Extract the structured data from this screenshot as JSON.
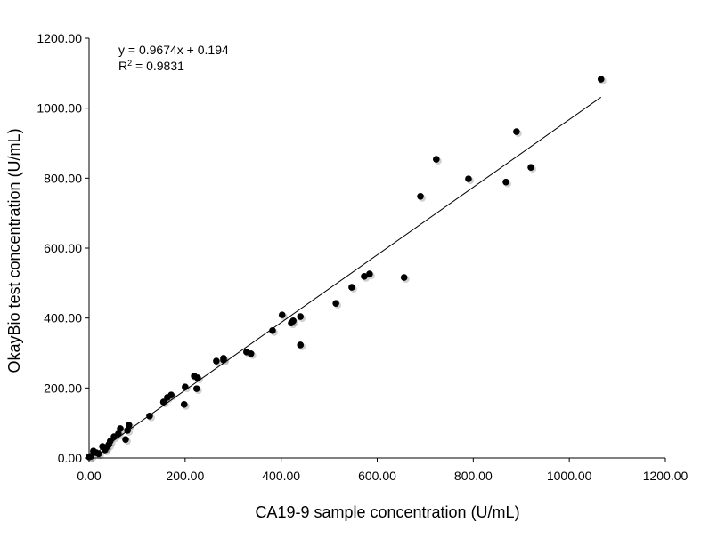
{
  "chart_data": {
    "type": "scatter",
    "xlabel": "CA19-9  sample concentration (U/mL)",
    "ylabel": "OkayBio test concentration (U/mL)",
    "xlim": [
      0,
      1200
    ],
    "ylim": [
      0,
      1200
    ],
    "xticks": [
      "0.00",
      "200.00",
      "400.00",
      "600.00",
      "800.00",
      "1000.00",
      "1200.00"
    ],
    "yticks": [
      "0.00",
      "200.00",
      "400.00",
      "600.00",
      "800.00",
      "1000.00",
      "1200.00"
    ],
    "grid": false,
    "marker_color": "#000000",
    "trendline": {
      "equation": "y = 0.9674x + 0.194",
      "r2_label": "R",
      "r2_sup": "2",
      "r2_value": " = 0.9831",
      "slope": 0.9674,
      "intercept": 0.194,
      "x_range": [
        0,
        1066
      ]
    },
    "points": [
      [
        1066,
        1083
      ],
      [
        890,
        933
      ],
      [
        723,
        854
      ],
      [
        790,
        798
      ],
      [
        690,
        748
      ],
      [
        868,
        789
      ],
      [
        920,
        831
      ],
      [
        656,
        516
      ],
      [
        584,
        526
      ],
      [
        573,
        519
      ],
      [
        547,
        488
      ],
      [
        514,
        442
      ],
      [
        440,
        404
      ],
      [
        425,
        392
      ],
      [
        421,
        386
      ],
      [
        402,
        409
      ],
      [
        382,
        364
      ],
      [
        440,
        323
      ],
      [
        328,
        303
      ],
      [
        337,
        298
      ],
      [
        280,
        280
      ],
      [
        280,
        285
      ],
      [
        265,
        277
      ],
      [
        219,
        234
      ],
      [
        226,
        229
      ],
      [
        200,
        203
      ],
      [
        224,
        198
      ],
      [
        198,
        153
      ],
      [
        171,
        180
      ],
      [
        163,
        173
      ],
      [
        155,
        160
      ],
      [
        126,
        120
      ],
      [
        83,
        94
      ],
      [
        80,
        79
      ],
      [
        76,
        53
      ],
      [
        65,
        84
      ],
      [
        61,
        69
      ],
      [
        52,
        61
      ],
      [
        44,
        48
      ],
      [
        41,
        38
      ],
      [
        28,
        33
      ],
      [
        33,
        23
      ],
      [
        15,
        15
      ],
      [
        9,
        20
      ],
      [
        4,
        5
      ],
      [
        0,
        3
      ],
      [
        20,
        12
      ],
      [
        36,
        30
      ]
    ]
  }
}
